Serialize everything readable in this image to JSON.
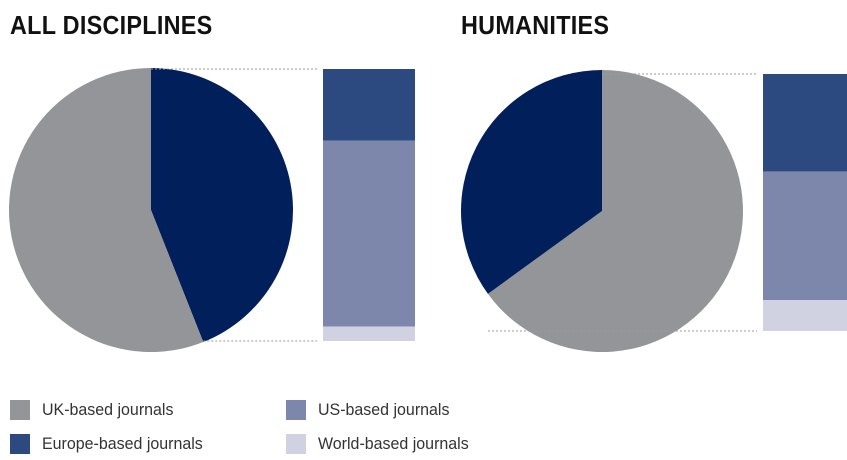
{
  "chart_data": [
    {
      "type": "pie",
      "title": "ALL DISCIPLINES",
      "start": "top",
      "slices": [
        {
          "key": "other",
          "value": 0.44,
          "color": "#001f5b",
          "label": ""
        },
        {
          "key": "uk",
          "value": 0.56,
          "color": "#939598",
          "label": "UK-based journals"
        }
      ],
      "breakdown": {
        "of": "other",
        "segments": [
          {
            "key": "europe",
            "value": 0.263,
            "color": "#2c4a80",
            "label": "Europe-based journals"
          },
          {
            "key": "us",
            "value": 0.684,
            "color": "#7d86ab",
            "label": "US-based journals"
          },
          {
            "key": "world",
            "value": 0.053,
            "color": "#d0d2e2",
            "label": "World-based journals"
          }
        ]
      }
    },
    {
      "type": "pie",
      "title": "HUMANITIES",
      "start": "top",
      "slices": [
        {
          "key": "uk",
          "value": 0.65,
          "color": "#939598",
          "label": "UK-based journals"
        },
        {
          "key": "other",
          "value": 0.35,
          "color": "#001f5b",
          "label": ""
        }
      ],
      "breakdown": {
        "of": "other",
        "segments": [
          {
            "key": "europe",
            "value": 0.38,
            "color": "#2c4a80",
            "label": "Europe-based journals"
          },
          {
            "key": "us",
            "value": 0.5,
            "color": "#7d86ab",
            "label": "US-based journals"
          },
          {
            "key": "world",
            "value": 0.12,
            "color": "#d0d2e2",
            "label": "World-based journals"
          }
        ]
      }
    }
  ],
  "legend": [
    {
      "label": "UK-based journals",
      "color": "#939598"
    },
    {
      "label": "US-based journals",
      "color": "#7d86ab"
    },
    {
      "label": "Europe-based journals",
      "color": "#2c4a80"
    },
    {
      "label": "World-based journals",
      "color": "#d0d2e2"
    }
  ],
  "colors": {
    "connector": "#9a9a9a"
  }
}
